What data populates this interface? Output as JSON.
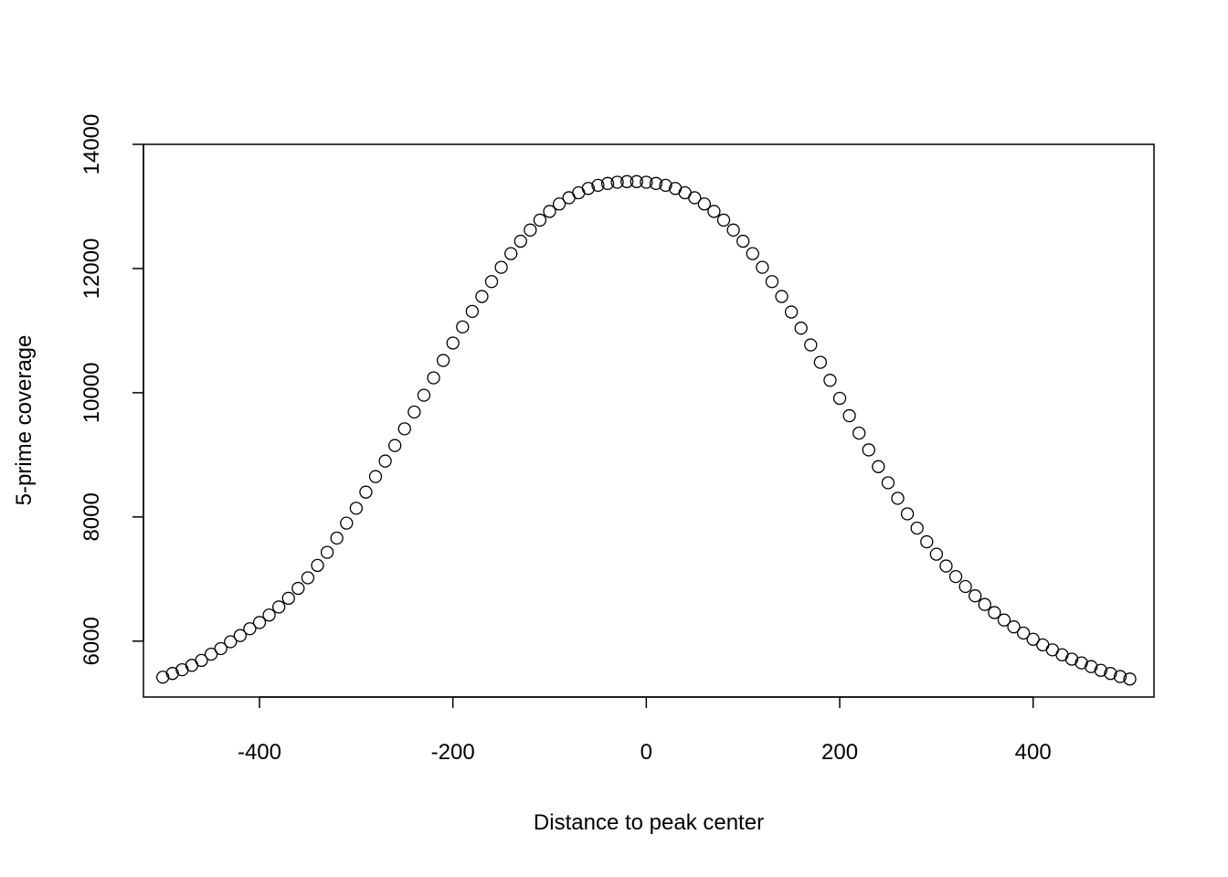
{
  "chart_data": {
    "type": "scatter",
    "title": "",
    "xlabel": "Distance to peak center",
    "ylabel": "5-prime coverage",
    "xlim": [
      -520,
      525
    ],
    "ylim": [
      5100,
      14000
    ],
    "x_ticks": [
      -400,
      -200,
      0,
      200,
      400
    ],
    "x_tick_labels": [
      "-400",
      "-200",
      "0",
      "200",
      "400"
    ],
    "y_ticks": [
      6000,
      8000,
      10000,
      12000,
      14000
    ],
    "y_tick_labels": [
      "6000",
      "8000",
      "10000",
      "12000",
      "14000"
    ],
    "grid": false,
    "marker": "open-circle",
    "marker_color": "#000000",
    "series": [
      {
        "x": [
          -500,
          -490,
          -480,
          -470,
          -460,
          -450,
          -440,
          -430,
          -420,
          -410,
          -400,
          -390,
          -380,
          -370,
          -360,
          -350,
          -340,
          -330,
          -320,
          -310,
          -300,
          -290,
          -280,
          -270,
          -260,
          -250,
          -240,
          -230,
          -220,
          -210,
          -200,
          -190,
          -180,
          -170,
          -160,
          -150,
          -140,
          -130,
          -120,
          -110,
          -100,
          -90,
          -80,
          -70,
          -60,
          -50,
          -40,
          -30,
          -20,
          -10,
          0,
          10,
          20,
          30,
          40,
          50,
          60,
          70,
          80,
          90,
          100,
          110,
          120,
          130,
          140,
          150,
          160,
          170,
          180,
          190,
          200,
          210,
          220,
          230,
          240,
          250,
          260,
          270,
          280,
          290,
          300,
          310,
          320,
          330,
          340,
          350,
          360,
          370,
          380,
          390,
          400,
          410,
          420,
          430,
          440,
          450,
          460,
          470,
          480,
          490,
          500
        ],
        "y": [
          5420,
          5480,
          5540,
          5610,
          5690,
          5790,
          5880,
          5990,
          6090,
          6200,
          6300,
          6420,
          6550,
          6690,
          6850,
          7020,
          7220,
          7430,
          7660,
          7900,
          8140,
          8400,
          8650,
          8900,
          9150,
          9420,
          9690,
          9960,
          10240,
          10520,
          10800,
          11060,
          11310,
          11550,
          11790,
          12020,
          12240,
          12440,
          12620,
          12780,
          12920,
          13040,
          13140,
          13220,
          13290,
          13340,
          13370,
          13390,
          13400,
          13400,
          13390,
          13370,
          13340,
          13290,
          13220,
          13140,
          13040,
          12920,
          12780,
          12620,
          12440,
          12240,
          12020,
          11790,
          11550,
          11300,
          11040,
          10770,
          10490,
          10200,
          9910,
          9630,
          9350,
          9080,
          8810,
          8550,
          8300,
          8050,
          7820,
          7600,
          7400,
          7210,
          7040,
          6880,
          6730,
          6590,
          6460,
          6340,
          6230,
          6130,
          6030,
          5940,
          5860,
          5780,
          5710,
          5650,
          5590,
          5530,
          5480,
          5430,
          5390
        ]
      }
    ]
  }
}
